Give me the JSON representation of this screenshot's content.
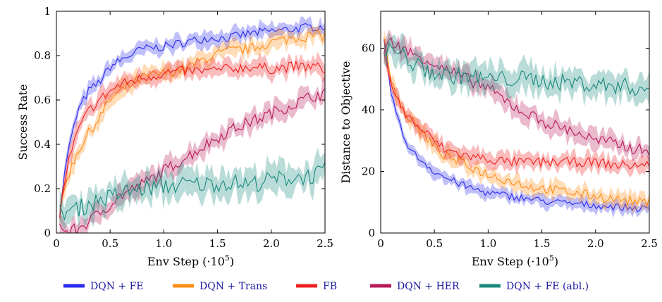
{
  "chart_data": [
    {
      "type": "line",
      "xlabel": "Env Step (·10",
      "xlabel_sup": "5",
      "xlabel_suffix": ")",
      "ylabel": "Success Rate",
      "xlim": [
        0,
        2.5
      ],
      "ylim": [
        0,
        1
      ],
      "xticks": [
        "0",
        "0.5",
        "1.0",
        "1.5",
        "2.0",
        "2.5"
      ],
      "yticks": [
        "0",
        "0.2",
        "0.4",
        "0.6",
        "0.8",
        "1"
      ],
      "xtick_values": [
        0,
        0.5,
        1.0,
        1.5,
        2.0,
        2.5
      ],
      "ytick_values": [
        0,
        0.2,
        0.4,
        0.6,
        0.8,
        1
      ],
      "series": [
        {
          "name": "DQN + FE",
          "color": "#2a2aee",
          "x": [
            0.03,
            0.1,
            0.2,
            0.3,
            0.4,
            0.5,
            0.6,
            0.8,
            1.0,
            1.2,
            1.4,
            1.6,
            1.8,
            2.0,
            2.2,
            2.4,
            2.5
          ],
          "y": [
            0.1,
            0.35,
            0.55,
            0.64,
            0.68,
            0.75,
            0.78,
            0.83,
            0.84,
            0.86,
            0.88,
            0.88,
            0.9,
            0.91,
            0.92,
            0.93,
            0.93
          ],
          "band": 0.025
        },
        {
          "name": "DQN + Trans",
          "color": "#ff8c14",
          "x": [
            0.03,
            0.1,
            0.2,
            0.3,
            0.4,
            0.5,
            0.6,
            0.8,
            1.0,
            1.2,
            1.4,
            1.6,
            1.8,
            2.0,
            2.2,
            2.4,
            2.5
          ],
          "y": [
            0.08,
            0.25,
            0.37,
            0.45,
            0.52,
            0.6,
            0.64,
            0.7,
            0.72,
            0.74,
            0.79,
            0.82,
            0.83,
            0.86,
            0.88,
            0.89,
            0.89
          ],
          "band": 0.03
        },
        {
          "name": "FB",
          "color": "#f02020",
          "x": [
            0.03,
            0.1,
            0.2,
            0.3,
            0.4,
            0.5,
            0.6,
            0.8,
            1.0,
            1.2,
            1.4,
            1.6,
            1.8,
            2.0,
            2.2,
            2.4,
            2.5
          ],
          "y": [
            0.08,
            0.3,
            0.46,
            0.55,
            0.6,
            0.64,
            0.67,
            0.7,
            0.72,
            0.73,
            0.73,
            0.74,
            0.75,
            0.74,
            0.75,
            0.75,
            0.74
          ],
          "band": 0.03
        },
        {
          "name": "DQN + HER",
          "color": "#b8195a",
          "x": [
            0.03,
            0.1,
            0.2,
            0.3,
            0.4,
            0.5,
            0.6,
            0.8,
            1.0,
            1.2,
            1.4,
            1.6,
            1.8,
            2.0,
            2.2,
            2.4,
            2.5
          ],
          "y": [
            0.03,
            0.0,
            0.02,
            0.05,
            0.09,
            0.13,
            0.17,
            0.22,
            0.28,
            0.34,
            0.4,
            0.46,
            0.5,
            0.54,
            0.58,
            0.62,
            0.63
          ],
          "band": 0.035
        },
        {
          "name": "DQN + FE (abl.)",
          "color": "#1a8a7e",
          "x": [
            0.03,
            0.1,
            0.2,
            0.3,
            0.4,
            0.5,
            0.6,
            0.8,
            1.0,
            1.2,
            1.4,
            1.6,
            1.8,
            2.0,
            2.2,
            2.4,
            2.5
          ],
          "y": [
            0.09,
            0.1,
            0.11,
            0.13,
            0.15,
            0.16,
            0.18,
            0.2,
            0.21,
            0.22,
            0.22,
            0.23,
            0.22,
            0.24,
            0.25,
            0.26,
            0.28
          ],
          "band": 0.05
        }
      ]
    },
    {
      "type": "line",
      "xlabel": "Env Step (·10",
      "xlabel_sup": "5",
      "xlabel_suffix": ")",
      "ylabel": "Distance to Objective",
      "xlim": [
        0,
        2.5
      ],
      "ylim": [
        0,
        72
      ],
      "xticks": [
        "0",
        "0.5",
        "1.0",
        "1.5",
        "2.0",
        "2.5"
      ],
      "yticks": [
        "0",
        "20",
        "40",
        "60"
      ],
      "xtick_values": [
        0,
        0.5,
        1.0,
        1.5,
        2.0,
        2.5
      ],
      "ytick_values": [
        0,
        20,
        40,
        60
      ],
      "series": [
        {
          "name": "DQN + FE",
          "color": "#2a2aee",
          "x": [
            0.03,
            0.1,
            0.2,
            0.3,
            0.4,
            0.5,
            0.6,
            0.8,
            1.0,
            1.2,
            1.4,
            1.6,
            1.8,
            2.0,
            2.2,
            2.4,
            2.5
          ],
          "y": [
            62,
            45,
            32,
            26,
            23,
            20,
            18,
            15,
            13,
            12,
            11,
            10,
            9.5,
            9,
            8.5,
            8,
            7.5
          ],
          "band": 1.5
        },
        {
          "name": "DQN + Trans",
          "color": "#ff8c14",
          "x": [
            0.03,
            0.1,
            0.2,
            0.3,
            0.4,
            0.5,
            0.6,
            0.8,
            1.0,
            1.2,
            1.4,
            1.6,
            1.8,
            2.0,
            2.2,
            2.4,
            2.5
          ],
          "y": [
            64,
            50,
            40,
            36,
            32,
            28,
            25,
            22,
            19,
            17,
            15,
            14,
            13,
            12,
            11,
            10,
            10
          ],
          "band": 2
        },
        {
          "name": "FB",
          "color": "#f02020",
          "x": [
            0.03,
            0.1,
            0.2,
            0.3,
            0.4,
            0.5,
            0.6,
            0.8,
            1.0,
            1.2,
            1.4,
            1.6,
            1.8,
            2.0,
            2.2,
            2.4,
            2.5
          ],
          "y": [
            60,
            48,
            40,
            36,
            33,
            30,
            27,
            25,
            24,
            23,
            23,
            23,
            23,
            23,
            22,
            22,
            22
          ],
          "band": 2
        },
        {
          "name": "DQN + HER",
          "color": "#b8195a",
          "x": [
            0.03,
            0.1,
            0.2,
            0.3,
            0.4,
            0.5,
            0.6,
            0.8,
            1.0,
            1.2,
            1.4,
            1.6,
            1.8,
            2.0,
            2.2,
            2.4,
            2.5
          ],
          "y": [
            60,
            62,
            60,
            58,
            57,
            55,
            53,
            50,
            47,
            42,
            38,
            35,
            33,
            30,
            29,
            27,
            27
          ],
          "band": 2.5
        },
        {
          "name": "DQN + FE (abl.)",
          "color": "#1a8a7e",
          "x": [
            0.03,
            0.1,
            0.2,
            0.3,
            0.4,
            0.5,
            0.6,
            0.8,
            1.0,
            1.2,
            1.4,
            1.6,
            1.8,
            2.0,
            2.2,
            2.4,
            2.5
          ],
          "y": [
            58,
            60,
            58,
            55,
            53,
            52,
            51,
            51,
            50,
            50,
            50,
            49,
            49,
            48,
            48,
            47,
            47
          ],
          "band": 3.5
        }
      ]
    }
  ],
  "legend": {
    "items": [
      {
        "label": "DQN + FE",
        "color": "#2a2aee"
      },
      {
        "label": "DQN + Trans",
        "color": "#ff8c14"
      },
      {
        "label": "FB",
        "color": "#f02020"
      },
      {
        "label": "DQN + HER",
        "color": "#b8195a"
      },
      {
        "label": "DQN + FE (abl.)",
        "color": "#1a8a7e"
      }
    ]
  }
}
